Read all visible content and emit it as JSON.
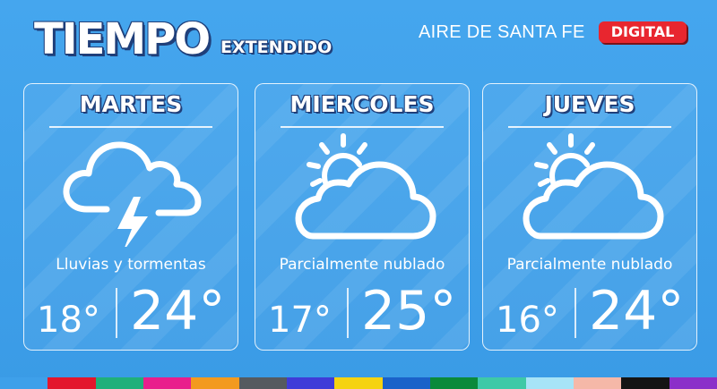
{
  "header": {
    "title": "TIEMPO",
    "subtitle": "EXTENDIDO",
    "brand": "AIRE DE SANTA FE",
    "badge": "DIGITAL"
  },
  "forecast": [
    {
      "day": "MARTES",
      "icon": "cloud-storm-icon",
      "description": "Lluvias y tormentas",
      "min": "18°",
      "max": "24°"
    },
    {
      "day": "MIERCOLES",
      "icon": "partly-cloudy-icon",
      "description": "Parcialmente nublado",
      "min": "17°",
      "max": "25°"
    },
    {
      "day": "JUEVES",
      "icon": "partly-cloudy-icon",
      "description": "Parcialmente nublado",
      "min": "16°",
      "max": "24°"
    }
  ],
  "colors": {
    "background": "#3ea0ea",
    "badge": "#e8262f",
    "bar": [
      "#3ea0ea",
      "#e3162c",
      "#1fb07a",
      "#e91e8c",
      "#f39a1f",
      "#555a5f",
      "#3f3bd8",
      "#f5d311",
      "#1a62c9",
      "#0a8a3b",
      "#3ec9a7",
      "#a7e4f7",
      "#f5b8a8",
      "#141414",
      "#8b2fc9"
    ]
  }
}
